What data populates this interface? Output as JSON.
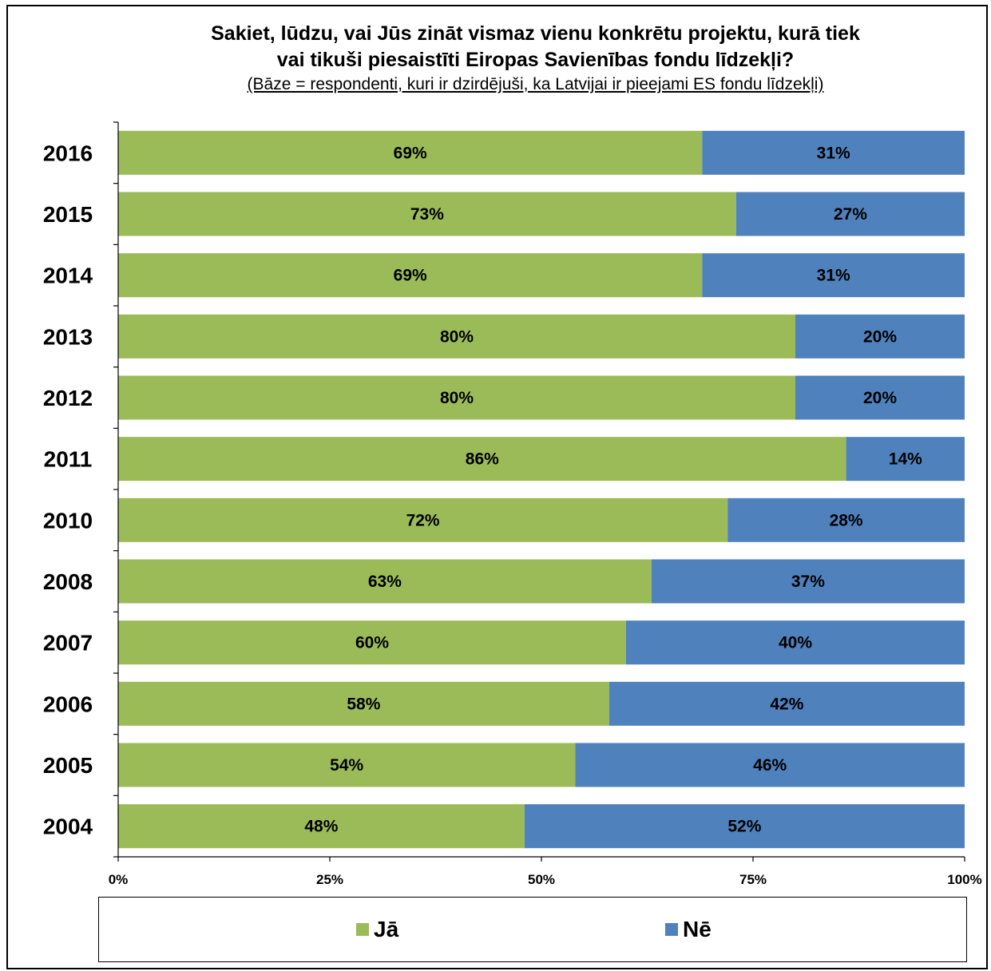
{
  "title_line1": "Sakiet, lūdzu, vai Jūs zināt vismaz vienu konkrētu projektu, kurā tiek",
  "title_line2": "vai tikuši piesaistīti Eiropas Savienības fondu līdzekļi?",
  "subtitle": "(Bāze = respondenti, kuri ir dzirdējuši, ka Latvijai ir pieejami ES fondu līdzekļi)",
  "colors": {
    "ja": "#9BBB59",
    "ne": "#4F81BD"
  },
  "chart_data": {
    "type": "bar",
    "orientation": "horizontal",
    "stacked": true,
    "percent_stacked": true,
    "categories": [
      "2016",
      "2015",
      "2014",
      "2013",
      "2012",
      "2011",
      "2010",
      "2008",
      "2007",
      "2006",
      "2005",
      "2004"
    ],
    "series": [
      {
        "name": "Jā",
        "values": [
          69,
          73,
          69,
          80,
          80,
          86,
          72,
          63,
          60,
          58,
          54,
          48
        ],
        "labels": [
          "69%",
          "73%",
          "69%",
          "80%",
          "80%",
          "86%",
          "72%",
          "63%",
          "60%",
          "58%",
          "54%",
          "48%"
        ]
      },
      {
        "name": "Nē",
        "values": [
          31,
          27,
          31,
          20,
          20,
          14,
          28,
          37,
          40,
          42,
          46,
          52
        ],
        "labels": [
          "31%",
          "27%",
          "31%",
          "20%",
          "20%",
          "14%",
          "28%",
          "37%",
          "40%",
          "42%",
          "46%",
          "52%"
        ]
      }
    ],
    "xlim": [
      0,
      100
    ],
    "xticks": [
      "0%",
      "25%",
      "50%",
      "75%",
      "100%"
    ],
    "grid": false,
    "legend_position": "bottom"
  },
  "legend": {
    "items": [
      "Jā",
      "Nē"
    ]
  }
}
